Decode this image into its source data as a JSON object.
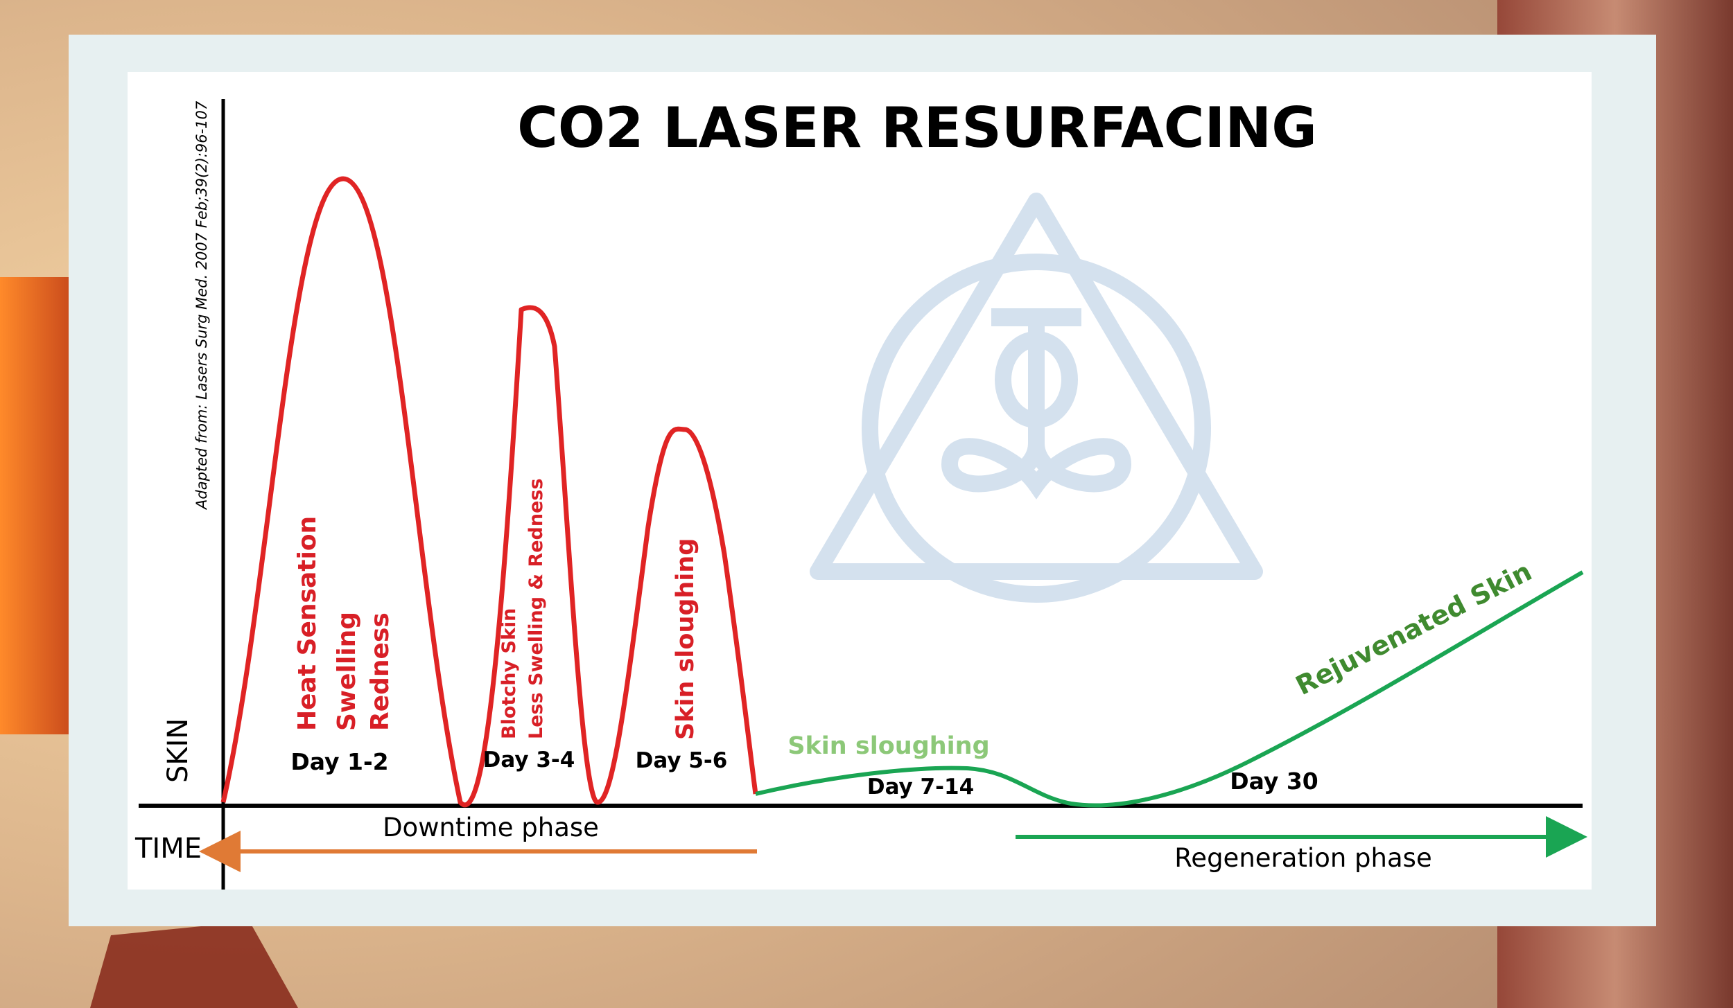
{
  "diagram": {
    "title": "CO2 LASER RESURFACING",
    "citation": "Adapted from: Lasers Surg Med. 2007 Feb;39(2):96-107",
    "axes": {
      "y_label": "SKIN",
      "x_label": "TIME"
    },
    "phases": {
      "day_1_2": {
        "day": "Day 1-2",
        "symptoms": [
          "Heat Sensation",
          "Swelling",
          "Redness"
        ]
      },
      "day_3_4": {
        "day": "Day 3-4",
        "symptoms": [
          "Blotchy Skin",
          "Less Swelling & Redness"
        ]
      },
      "day_5_6": {
        "day": "Day 5-6",
        "symptom": "Skin sloughing"
      },
      "day_7_14": {
        "day": "Day 7-14",
        "symptom": "Skin sloughing"
      },
      "day_30": {
        "day": "Day 30",
        "outcome": "Rejuvenated Skin"
      }
    },
    "bands": {
      "downtime": "Downtime phase",
      "regeneration": "Regeneration phase"
    },
    "colors": {
      "red_curve": "#e02424",
      "green_curve": "#1aa553",
      "light_green_text": "#8cc878",
      "dark_green_text": "#3f8a2f",
      "downtime_arrow": "#e07a35",
      "watermark": "#d4e1ee"
    }
  }
}
